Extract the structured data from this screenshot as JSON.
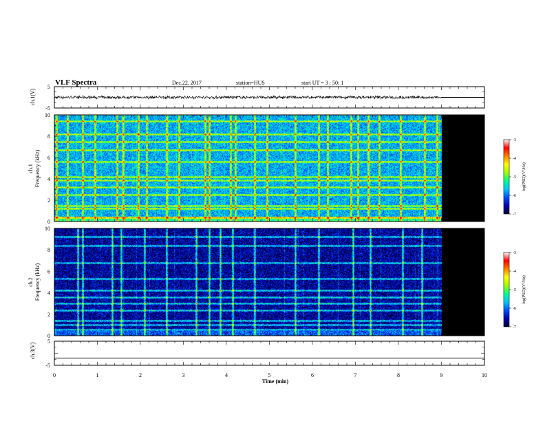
{
  "header": {
    "title": "VLF Spectra",
    "date": "Dec.22, 2017",
    "station": "station=HUS",
    "start": "start UT =  3 : 50: 1"
  },
  "colorbar": {
    "label": "log(PSD)(V²/Hz)",
    "ticks": [
      "-3",
      "-4",
      "-5",
      "-6",
      "-7"
    ],
    "range": [
      -7,
      -3
    ],
    "colors": [
      "#000033",
      "#0000b0",
      "#0050ff",
      "#00c8ff",
      "#00ff90",
      "#a0ff00",
      "#ffff00",
      "#ff8000",
      "#ff0000",
      "#ffffff"
    ]
  },
  "chart_data": [
    {
      "type": "line",
      "name": "ch1-voltage",
      "ylabel": "ch.1(V)",
      "ylim": [
        -5,
        5
      ],
      "yticks": [
        "5",
        "-5"
      ],
      "xlim": [
        0,
        10
      ],
      "data_end_min": 9.0,
      "series": [
        {
          "x": [
            0,
            9.0
          ],
          "y": [
            0,
            0
          ]
        }
      ],
      "note_noise_band": 0.7
    },
    {
      "type": "heatmap",
      "name": "ch1-spectrogram",
      "ylabel_line1": "ch.1",
      "ylabel_line2": "Frequency (kHz)",
      "ylim": [
        0,
        10
      ],
      "yticks": [
        "0",
        "2",
        "4",
        "6",
        "8",
        "10"
      ],
      "xlim": [
        0,
        10
      ],
      "data_end_min": 9.0,
      "background_level": -5.6,
      "horizontal_bands_khz": [
        0.4,
        1.2,
        1.5,
        2.5,
        3.2,
        3.9,
        4.2,
        5.6,
        6.7,
        7.5,
        8.2,
        9.4
      ],
      "vertical_bursts_min": [
        0.05,
        0.3,
        0.65,
        0.95,
        1.45,
        1.6,
        1.95,
        2.15,
        2.6,
        2.9,
        3.5,
        3.6,
        4.1,
        4.2,
        4.65,
        4.95,
        5.6,
        6.15,
        6.35,
        6.9,
        7.05,
        7.3,
        7.55,
        8.05,
        8.6,
        8.9
      ]
    },
    {
      "type": "heatmap",
      "name": "ch2-spectrogram",
      "ylabel_line1": "ch.2",
      "ylabel_line2": "Frequency (kHz)",
      "ylim": [
        0,
        10
      ],
      "yticks": [
        "0",
        "2",
        "4",
        "6",
        "8",
        "10"
      ],
      "xlim": [
        0,
        10
      ],
      "data_end_min": 9.0,
      "background_level": -6.6,
      "horizontal_bands_khz": [
        0.6,
        1.0,
        1.4,
        2.4,
        3.0,
        3.6,
        4.2,
        5.3,
        6.8,
        8.4,
        9.2
      ],
      "vertical_bursts_min": [
        0.55,
        0.65,
        1.35,
        1.55,
        2.1,
        2.6,
        3.3,
        3.6,
        3.85,
        4.15,
        4.65,
        5.6,
        6.15,
        6.95,
        7.35,
        8.1,
        8.55
      ]
    },
    {
      "type": "line",
      "name": "ch3-voltage",
      "ylabel": "ch.3(V)",
      "ylim": [
        -5,
        5
      ],
      "yticks": [
        "5",
        "-5"
      ],
      "xlim": [
        0,
        10
      ],
      "series": [
        {
          "x": [
            0,
            10
          ],
          "y": [
            -2,
            -2
          ]
        }
      ]
    }
  ],
  "xaxis": {
    "label": "Time (min)",
    "ticks": [
      "0",
      "1",
      "2",
      "3",
      "4",
      "5",
      "6",
      "7",
      "8",
      "9",
      "10"
    ]
  }
}
